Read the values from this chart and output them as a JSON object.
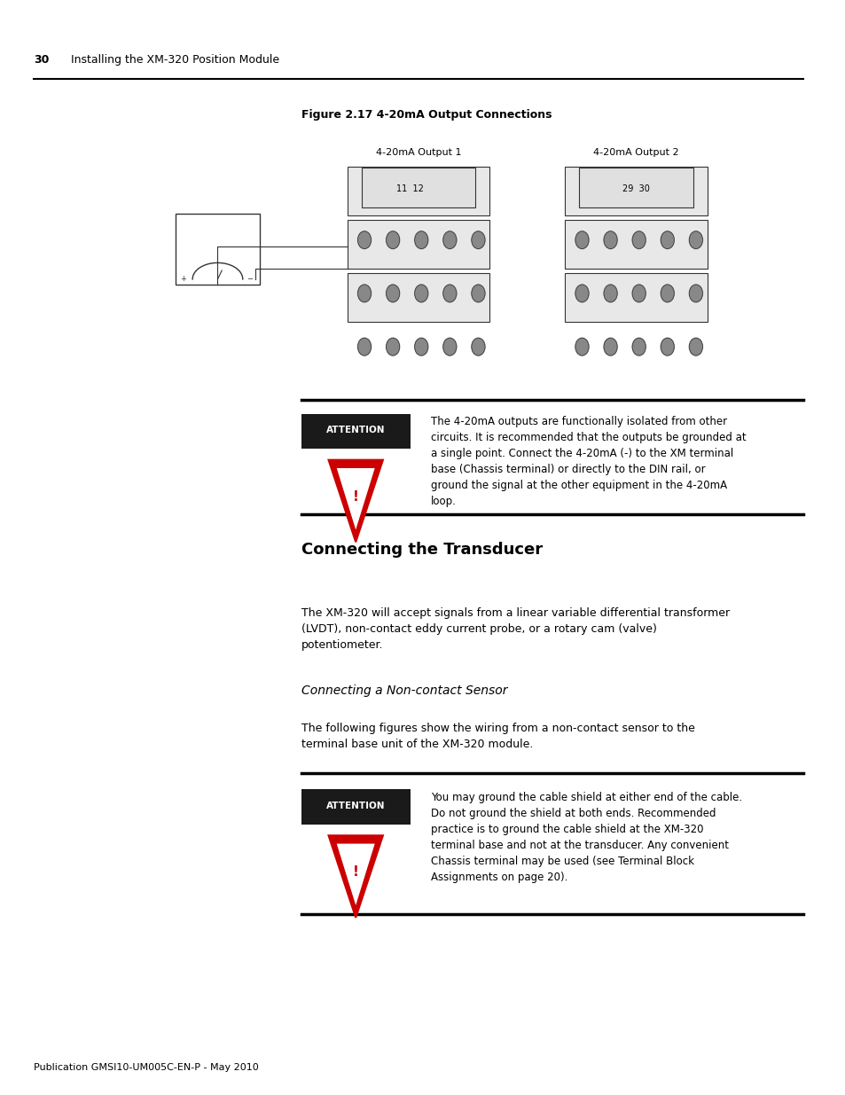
{
  "bg_color": "#ffffff",
  "header_text_num": "30",
  "header_text_title": "Installing the XM-320 Position Module",
  "figure_title": "Figure 2.17 4-20mA Output Connections",
  "figure_label1": "4-20mA Output 1",
  "figure_label2": "4-20mA Output 2",
  "figure_nums1": "11  12",
  "figure_nums2": "29  30",
  "attention_label": "ATTENTION",
  "attention_bg": "#1a1a1a",
  "attention_text1": "The 4-20mA outputs are functionally isolated from other\ncircuits. It is recommended that the outputs be grounded at\na single point. Connect the 4-20mA (-) to the XM terminal\nbase (Chassis terminal) or directly to the DIN rail, or\nground the signal at the other equipment in the 4-20mA\nloop.",
  "section_title": "Connecting the Transducer",
  "section_body": "The XM-320 will accept signals from a linear variable differential transformer\n(LVDT), non-contact eddy current probe, or a rotary cam (valve)\npotentiometer.",
  "subsection_title": "Connecting a Non-contact Sensor",
  "subsection_body": "The following figures show the wiring from a non-contact sensor to the\nterminal base unit of the XM-320 module.",
  "attention2_text": "You may ground the cable shield at either end of the cable.\nDo not ground the shield at both ends. Recommended\npractice is to ground the cable shield at the XM-320\nterminal base and not at the transducer. Any convenient\nChassis terminal may be used (see Terminal Block\nAssignments on page 20).",
  "footer_text": "Publication GMSI10-UM005C-EN-P - May 2010",
  "divider_color": "#000000",
  "triangle_color": "#cc0000",
  "text_color": "#000000"
}
